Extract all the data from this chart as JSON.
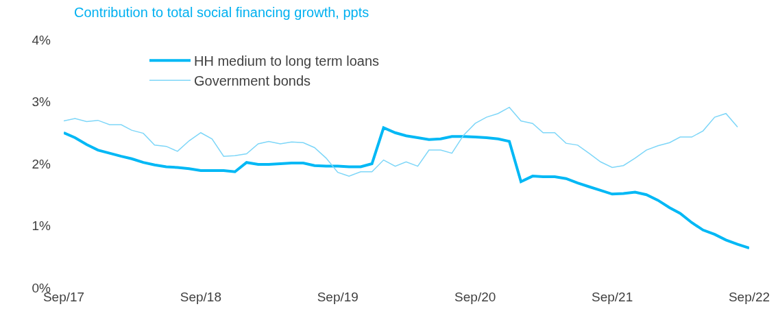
{
  "chart_data": {
    "type": "line",
    "title": "Contribution to total social financing growth, ppts",
    "x": [
      "2017-09",
      "2017-10",
      "2017-11",
      "2017-12",
      "2018-01",
      "2018-02",
      "2018-03",
      "2018-04",
      "2018-05",
      "2018-06",
      "2018-07",
      "2018-08",
      "2018-09",
      "2018-10",
      "2018-11",
      "2018-12",
      "2019-01",
      "2019-02",
      "2019-03",
      "2019-04",
      "2019-05",
      "2019-06",
      "2019-07",
      "2019-08",
      "2019-09",
      "2019-10",
      "2019-11",
      "2019-12",
      "2020-01",
      "2020-02",
      "2020-03",
      "2020-04",
      "2020-05",
      "2020-06",
      "2020-07",
      "2020-08",
      "2020-09",
      "2020-10",
      "2020-11",
      "2020-12",
      "2021-01",
      "2021-02",
      "2021-03",
      "2021-04",
      "2021-05",
      "2021-06",
      "2021-07",
      "2021-08",
      "2021-09",
      "2021-10",
      "2021-11",
      "2021-12",
      "2022-01",
      "2022-02",
      "2022-03",
      "2022-04",
      "2022-05",
      "2022-06",
      "2022-07",
      "2022-08",
      "2022-09"
    ],
    "series": [
      {
        "name": "HH medium to long term loans",
        "color": "#00b8f5",
        "values": [
          2.5,
          2.42,
          2.31,
          2.22,
          2.17,
          2.12,
          2.08,
          2.02,
          1.98,
          1.95,
          1.94,
          1.92,
          1.89,
          1.89,
          1.89,
          1.87,
          2.02,
          1.99,
          1.99,
          2.0,
          2.01,
          2.01,
          1.97,
          1.96,
          1.96,
          1.95,
          1.95,
          2.0,
          2.58,
          2.5,
          2.45,
          2.42,
          2.39,
          2.4,
          2.44,
          2.44,
          2.43,
          2.42,
          2.4,
          2.36,
          1.71,
          1.8,
          1.79,
          1.79,
          1.76,
          1.69,
          1.63,
          1.57,
          1.51,
          1.52,
          1.54,
          1.5,
          1.41,
          1.29,
          1.2,
          1.05,
          0.93,
          0.86,
          0.77,
          0.7,
          0.64
        ]
      },
      {
        "name": "Government bonds",
        "color": "#7dd6f8",
        "values": [
          2.69,
          2.73,
          2.68,
          2.7,
          2.63,
          2.63,
          2.54,
          2.49,
          2.3,
          2.28,
          2.2,
          2.37,
          2.5,
          2.4,
          2.12,
          2.13,
          2.16,
          2.32,
          2.36,
          2.32,
          2.35,
          2.34,
          2.26,
          2.09,
          1.86,
          1.8,
          1.87,
          1.87,
          2.06,
          1.96,
          2.03,
          1.96,
          2.22,
          2.22,
          2.17,
          2.46,
          2.65,
          2.75,
          2.81,
          2.91,
          2.69,
          2.65,
          2.5,
          2.5,
          2.33,
          2.3,
          2.17,
          2.03,
          1.94,
          1.97,
          2.09,
          2.22,
          2.29,
          2.34,
          2.43,
          2.43,
          2.53,
          2.75,
          2.81,
          2.59,
          null
        ]
      }
    ],
    "xlim": [
      "2017-09",
      "2022-09"
    ],
    "xticks": [
      {
        "value": "2017-09",
        "label": "Sep/17"
      },
      {
        "value": "2018-09",
        "label": "Sep/18"
      },
      {
        "value": "2019-09",
        "label": "Sep/19"
      },
      {
        "value": "2020-09",
        "label": "Sep/20"
      },
      {
        "value": "2021-09",
        "label": "Sep/21"
      },
      {
        "value": "2022-09",
        "label": "Sep/22"
      }
    ],
    "ylim": [
      0,
      4
    ],
    "yticks": [
      {
        "value": 0,
        "label": "0%"
      },
      {
        "value": 1,
        "label": "1%"
      },
      {
        "value": 2,
        "label": "2%"
      },
      {
        "value": 3,
        "label": "3%"
      },
      {
        "value": 4,
        "label": "4%"
      }
    ],
    "legend": "top"
  }
}
